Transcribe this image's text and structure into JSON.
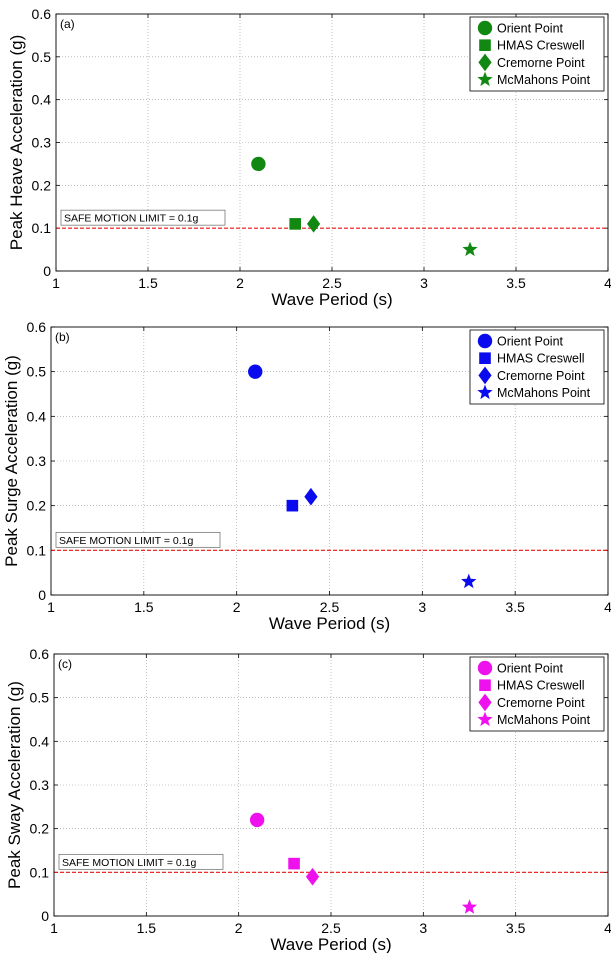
{
  "chart_data": [
    {
      "type": "scatter",
      "panel_label": "(a)",
      "xlabel": "Wave Period (s)",
      "ylabel": "Peak Heave Acceleration (g)",
      "xlim": [
        1,
        4
      ],
      "ylim": [
        0,
        0.6
      ],
      "xticks": [
        1,
        1.5,
        2,
        2.5,
        3,
        3.5,
        4
      ],
      "yticks": [
        0,
        0.1,
        0.2,
        0.3,
        0.4,
        0.5,
        0.6
      ],
      "grid": true,
      "legend_position": "top-right",
      "color": "#118811",
      "series": [
        {
          "name": "Orient Point",
          "marker": "circle",
          "x": 2.1,
          "y": 0.25
        },
        {
          "name": "HMAS Creswell",
          "marker": "square",
          "x": 2.3,
          "y": 0.11
        },
        {
          "name": "Cremorne Point",
          "marker": "diamond",
          "x": 2.4,
          "y": 0.11
        },
        {
          "name": "McMahons Point",
          "marker": "star",
          "x": 3.25,
          "y": 0.05
        }
      ],
      "reference_line": {
        "y": 0.1,
        "label": "SAFE MOTION LIMIT = 0.1g",
        "color": "#ee1111"
      }
    },
    {
      "type": "scatter",
      "panel_label": "(b)",
      "xlabel": "Wave Period (s)",
      "ylabel": "Peak Surge Acceleration (g)",
      "xlim": [
        1,
        4
      ],
      "ylim": [
        0,
        0.6
      ],
      "xticks": [
        1,
        1.5,
        2,
        2.5,
        3,
        3.5,
        4
      ],
      "yticks": [
        0,
        0.1,
        0.2,
        0.3,
        0.4,
        0.5,
        0.6
      ],
      "grid": true,
      "legend_position": "top-right",
      "color": "#0a0aee",
      "series": [
        {
          "name": "Orient Point",
          "marker": "circle",
          "x": 2.1,
          "y": 0.5
        },
        {
          "name": "HMAS Creswell",
          "marker": "square",
          "x": 2.3,
          "y": 0.2
        },
        {
          "name": "Cremorne Point",
          "marker": "diamond",
          "x": 2.4,
          "y": 0.22
        },
        {
          "name": "McMahons Point",
          "marker": "star",
          "x": 3.25,
          "y": 0.03
        }
      ],
      "reference_line": {
        "y": 0.1,
        "label": "SAFE MOTION LIMIT = 0.1g",
        "color": "#ee1111"
      }
    },
    {
      "type": "scatter",
      "panel_label": "(c)",
      "xlabel": "Wave Period (s)",
      "ylabel": "Peak Sway Acceleration (g)",
      "xlim": [
        1,
        4
      ],
      "ylim": [
        0,
        0.6
      ],
      "xticks": [
        1,
        1.5,
        2,
        2.5,
        3,
        3.5,
        4
      ],
      "yticks": [
        0,
        0.1,
        0.2,
        0.3,
        0.4,
        0.5,
        0.6
      ],
      "grid": true,
      "legend_position": "top-right",
      "color": "#ee11ee",
      "series": [
        {
          "name": "Orient Point",
          "marker": "circle",
          "x": 2.1,
          "y": 0.22
        },
        {
          "name": "HMAS Creswell",
          "marker": "square",
          "x": 2.3,
          "y": 0.12
        },
        {
          "name": "Cremorne Point",
          "marker": "diamond",
          "x": 2.4,
          "y": 0.09
        },
        {
          "name": "McMahons Point",
          "marker": "star",
          "x": 3.25,
          "y": 0.02
        }
      ],
      "reference_line": {
        "y": 0.1,
        "label": "SAFE MOTION LIMIT = 0.1g",
        "color": "#ee1111"
      }
    }
  ]
}
